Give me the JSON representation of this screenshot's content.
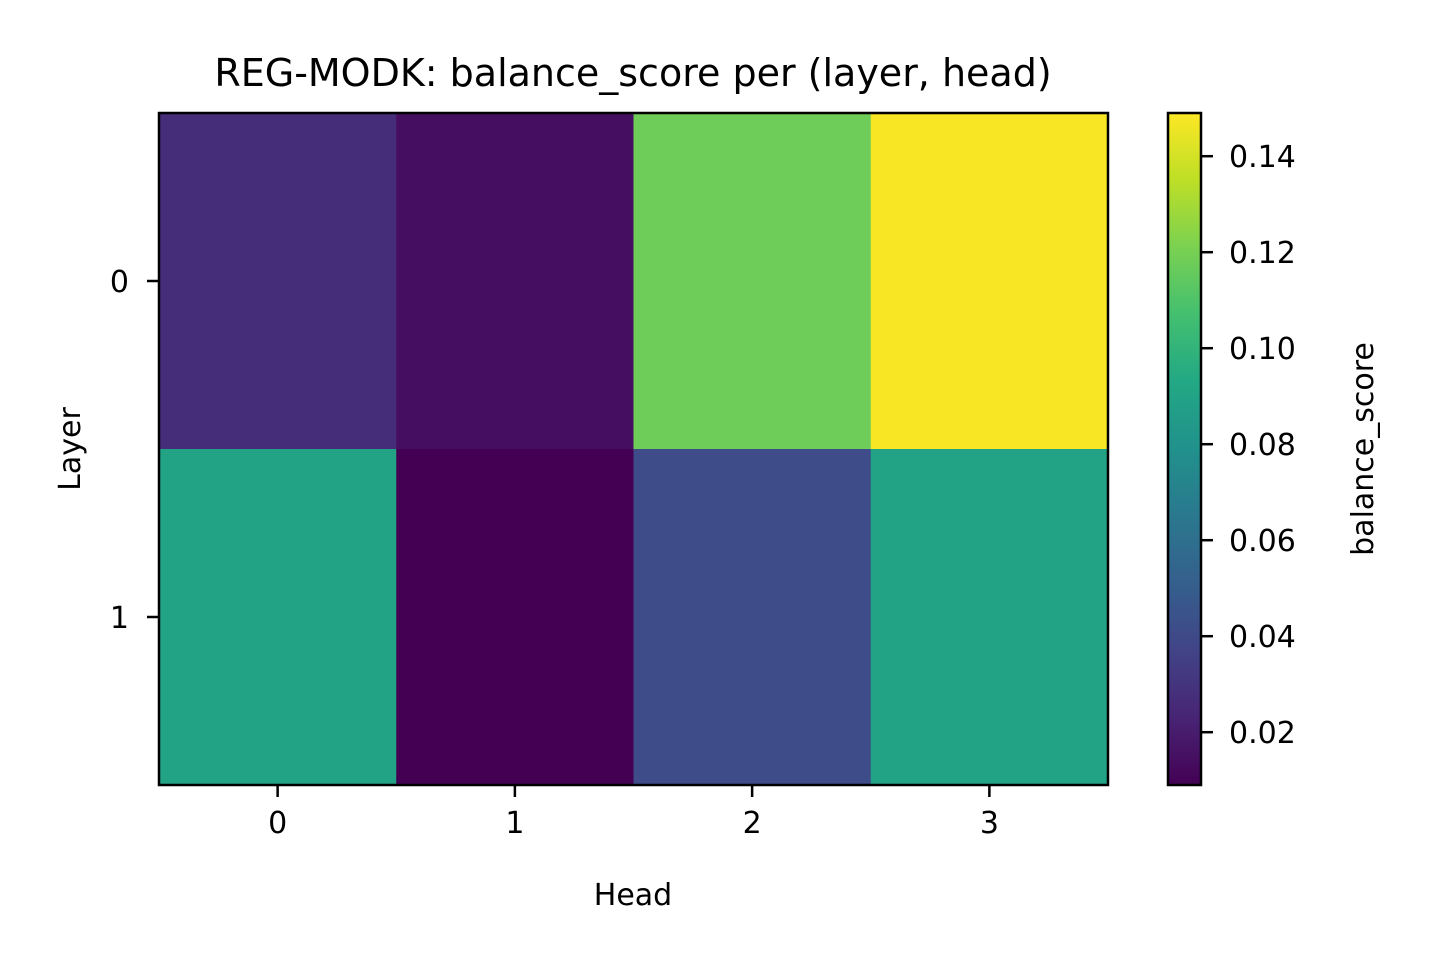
{
  "chart_data": {
    "type": "heatmap",
    "title": "REG-MODK: balance_score per (layer, head)",
    "xlabel": "Head",
    "ylabel": "Layer",
    "x_categories": [
      "0",
      "1",
      "2",
      "3"
    ],
    "y_categories": [
      "0",
      "1"
    ],
    "values": [
      [
        0.027,
        0.014,
        0.118,
        0.148
      ],
      [
        0.09,
        0.009,
        0.041,
        0.09
      ]
    ],
    "colormap": "viridis",
    "colorbar": {
      "label": "balance_score",
      "vmin": 0.009,
      "vmax": 0.149,
      "ticks": [
        0.02,
        0.04,
        0.06,
        0.08,
        0.1,
        0.12,
        0.14
      ],
      "tick_labels": [
        "0.02",
        "0.04",
        "0.06",
        "0.08",
        "0.10",
        "0.12",
        "0.14"
      ]
    },
    "grid": false
  }
}
